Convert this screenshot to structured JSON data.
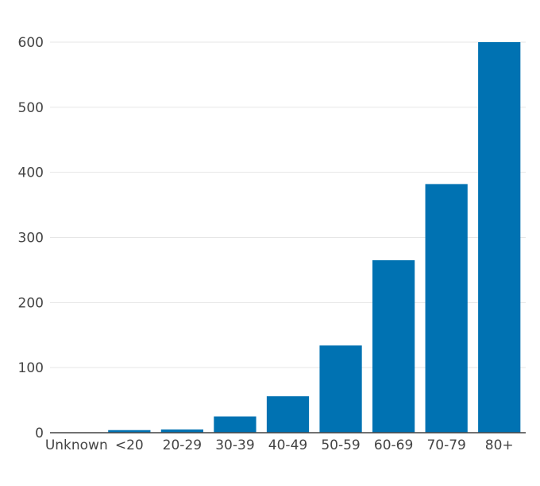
{
  "chart_data": {
    "type": "bar",
    "title": "",
    "xlabel": "",
    "ylabel": "",
    "categories": [
      "Unknown",
      "<20",
      "20-29",
      "30-39",
      "40-49",
      "50-59",
      "60-69",
      "70-79",
      "80+"
    ],
    "values": [
      0,
      4,
      5,
      25,
      56,
      134,
      265,
      382,
      600
    ],
    "ylim": [
      0,
      600
    ],
    "yticks": [
      0,
      100,
      200,
      300,
      400,
      500,
      600
    ],
    "grid": true,
    "bar_color": "#0072b2",
    "grid_color": "#e6e6e6",
    "axis_color": "#444444"
  }
}
